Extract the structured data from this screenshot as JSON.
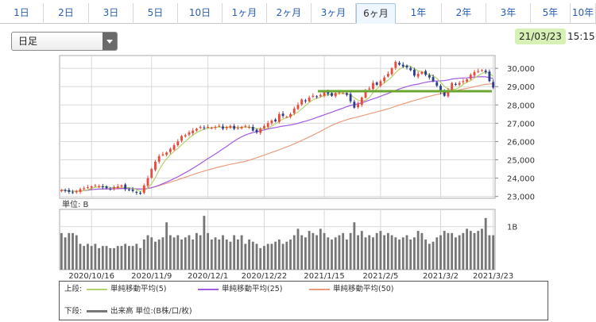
{
  "tabs": [
    {
      "label": "1日",
      "active": false
    },
    {
      "label": "2日",
      "active": false
    },
    {
      "label": "3日",
      "active": false
    },
    {
      "label": "5日",
      "active": false
    },
    {
      "label": "10日",
      "active": false
    },
    {
      "label": "1ヶ月",
      "active": false
    },
    {
      "label": "2ヶ月",
      "active": false
    },
    {
      "label": "3ヶ月",
      "active": false
    },
    {
      "label": "6ヶ月",
      "active": true
    },
    {
      "label": "1年",
      "active": false
    },
    {
      "label": "2年",
      "active": false
    },
    {
      "label": "3年",
      "active": false
    },
    {
      "label": "5年",
      "active": false
    },
    {
      "label": "10年",
      "active": false
    }
  ],
  "period_select": {
    "value": "日足"
  },
  "datetime": {
    "date": "21/03/23",
    "time": "15:15"
  },
  "colors": {
    "up": "#e84a3c",
    "down": "#2c3e8c",
    "ma5": "#b3d36b",
    "ma25": "#a35be0",
    "ma50": "#ea9c7c",
    "hline": "#6aa630",
    "volume": "#777777"
  },
  "chart_data": {
    "type": "candlestick",
    "price_axis": {
      "ticks": [
        "30,000",
        "29,000",
        "28,000",
        "27,000",
        "26,000",
        "25,000",
        "24,000",
        "23,000"
      ],
      "ylim": [
        22900,
        30700
      ]
    },
    "volume_axis": {
      "unit_label": "単位: B",
      "ticks": [
        "1B"
      ],
      "ylim": [
        0,
        1.4
      ]
    },
    "x_tick_labels": [
      "2020/10/16",
      "2020/11/9",
      "2020/12/1",
      "2020/12/22",
      "2021/1/15",
      "2021/2/5",
      "2021/3/2",
      "2021/3/23"
    ],
    "x_tick_index": [
      8,
      24,
      39,
      54,
      70,
      85,
      101,
      115
    ],
    "horizontal_line": 28750,
    "close": [
      23350,
      23300,
      23250,
      23200,
      23300,
      23400,
      23450,
      23500,
      23550,
      23600,
      23550,
      23500,
      23450,
      23400,
      23500,
      23550,
      23600,
      23400,
      23350,
      23300,
      23200,
      23150,
      23600,
      24000,
      24500,
      24900,
      25200,
      25300,
      25400,
      25600,
      25800,
      26000,
      26300,
      26350,
      26500,
      26600,
      26700,
      26800,
      26750,
      26800,
      26750,
      26800,
      26850,
      26700,
      26800,
      26850,
      26700,
      26750,
      26800,
      26850,
      26800,
      26600,
      26500,
      26700,
      26850,
      27000,
      27150,
      27100,
      27500,
      27400,
      27350,
      27500,
      27800,
      28000,
      28300,
      28200,
      28400,
      28500,
      28450,
      28550,
      28700,
      28600,
      28500,
      28650,
      28700,
      28650,
      28550,
      28200,
      27850,
      28050,
      28400,
      28800,
      28900,
      29200,
      29100,
      29300,
      29500,
      29700,
      30000,
      30350,
      30200,
      30100,
      30050,
      29900,
      29600,
      29700,
      29800,
      29650,
      29500,
      29300,
      29050,
      28700,
      28500,
      28800,
      29200,
      29100,
      29200,
      29300,
      29400,
      29650,
      29800,
      29850,
      29900,
      29800,
      29300,
      28950
    ],
    "ma5_label": "単純移動平均(5)",
    "ma25_label": "単純移動平均(25)",
    "ma50_label": "単純移動平均(50)",
    "volume": [
      0.85,
      0.75,
      0.85,
      0.85,
      0.8,
      0.6,
      0.55,
      0.6,
      0.55,
      0.6,
      0.5,
      0.55,
      0.55,
      0.5,
      0.5,
      0.55,
      0.55,
      0.6,
      0.55,
      0.55,
      0.6,
      0.5,
      0.7,
      0.8,
      0.75,
      0.65,
      0.7,
      0.75,
      1.1,
      0.8,
      0.75,
      0.8,
      0.7,
      0.75,
      0.8,
      0.7,
      0.85,
      0.8,
      1.25,
      0.85,
      0.7,
      0.75,
      0.7,
      0.8,
      0.7,
      0.65,
      0.8,
      0.7,
      0.8,
      0.6,
      0.7,
      0.65,
      0.6,
      0.5,
      0.55,
      0.6,
      0.6,
      0.65,
      0.7,
      0.6,
      0.65,
      0.7,
      0.8,
      0.95,
      0.8,
      0.75,
      0.9,
      0.85,
      0.8,
      0.95,
      0.85,
      0.75,
      0.7,
      0.75,
      0.8,
      0.85,
      0.7,
      0.85,
      1.1,
      0.8,
      0.9,
      0.75,
      0.8,
      0.75,
      0.85,
      0.9,
      0.8,
      0.85,
      0.8,
      0.75,
      0.7,
      0.75,
      0.8,
      0.7,
      0.75,
      0.9,
      0.85,
      0.7,
      0.6,
      0.65,
      0.75,
      0.8,
      0.9,
      0.85,
      0.85,
      0.75,
      0.8,
      0.85,
      0.95,
      0.9,
      0.85,
      0.9,
      0.95,
      1.2,
      0.8,
      0.8
    ]
  },
  "legend": {
    "upper_label": "上段:",
    "lower_label": "下段:",
    "volume_label": "出来高 単位:(B株/口/枚)"
  }
}
